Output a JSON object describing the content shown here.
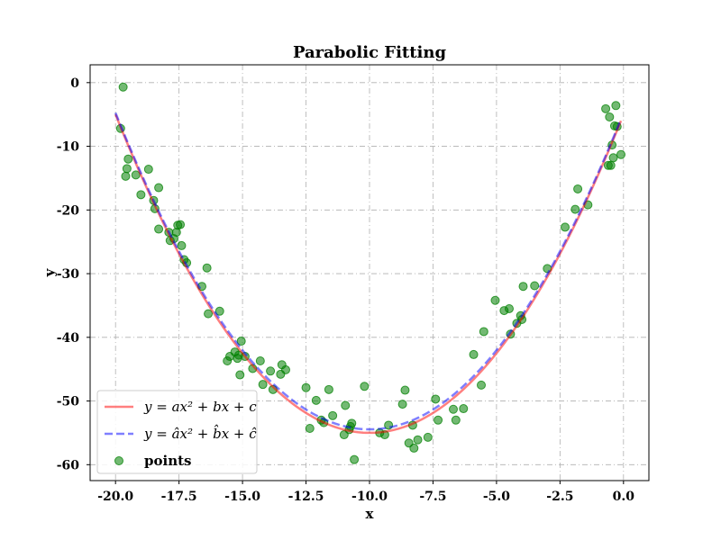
{
  "chart_data": {
    "type": "scatter",
    "title": "Parabolic Fitting",
    "xlabel": "x",
    "ylabel": "y",
    "xlim": [
      -21.0,
      1.0
    ],
    "ylim": [
      -62.5,
      2.8
    ],
    "xticks": [
      -20.0,
      -17.5,
      -15.0,
      -12.5,
      -10.0,
      -7.5,
      -5.0,
      -2.5,
      0.0
    ],
    "xtick_labels": [
      "-20.0",
      "-17.5",
      "-15.0",
      "-12.5",
      "-10.0",
      "-7.5",
      "-5.0",
      "-2.5",
      "0.0"
    ],
    "yticks": [
      0,
      -10,
      -20,
      -30,
      -40,
      -50,
      -60
    ],
    "ytick_labels": [
      "0",
      "-10",
      "-20",
      "-30",
      "-40",
      "-50",
      "-60"
    ],
    "grid": true,
    "legend_position": "bottom-left",
    "series": [
      {
        "name": "y = ax² + bx + c",
        "kind": "line",
        "color": "#ff0000",
        "style": "solid",
        "coefficients": {
          "a": 0.5,
          "b": 10.0,
          "c": -5.0
        },
        "x_range": [
          -20.0,
          -0.1
        ]
      },
      {
        "name": "y = âx² + b̂x + ĉ",
        "kind": "line",
        "color": "#0000ff",
        "style": "dashed",
        "coefficients": {
          "a": 0.497,
          "b": 9.94,
          "c": -4.75
        },
        "x_range": [
          -20.0,
          -0.1
        ]
      },
      {
        "name": "points",
        "kind": "scatter",
        "color": "#008000",
        "points": [
          [
            -19.8,
            -7.2
          ],
          [
            -19.7,
            -0.7
          ],
          [
            -19.6,
            -14.7
          ],
          [
            -19.55,
            -13.5
          ],
          [
            -19.5,
            -12.0
          ],
          [
            -19.2,
            -14.5
          ],
          [
            -19.0,
            -17.6
          ],
          [
            -18.7,
            -13.6
          ],
          [
            -18.5,
            -18.5
          ],
          [
            -18.45,
            -19.8
          ],
          [
            -18.3,
            -23.0
          ],
          [
            -18.3,
            -16.5
          ],
          [
            -17.9,
            -23.5
          ],
          [
            -17.85,
            -24.8
          ],
          [
            -17.7,
            -24.5
          ],
          [
            -17.6,
            -23.5
          ],
          [
            -17.55,
            -22.4
          ],
          [
            -17.45,
            -22.3
          ],
          [
            -17.4,
            -25.6
          ],
          [
            -17.3,
            -27.8
          ],
          [
            -17.2,
            -28.3
          ],
          [
            -16.6,
            -32.0
          ],
          [
            -16.4,
            -29.1
          ],
          [
            -16.35,
            -36.3
          ],
          [
            -15.9,
            -35.9
          ],
          [
            -15.6,
            -43.7
          ],
          [
            -15.5,
            -43.0
          ],
          [
            -15.3,
            -42.3
          ],
          [
            -15.2,
            -43.3
          ],
          [
            -15.15,
            -42.8
          ],
          [
            -15.1,
            -45.9
          ],
          [
            -15.05,
            -40.6
          ],
          [
            -14.9,
            -43.0
          ],
          [
            -14.6,
            -44.9
          ],
          [
            -14.3,
            -43.7
          ],
          [
            -14.2,
            -47.4
          ],
          [
            -13.9,
            -45.3
          ],
          [
            -13.8,
            -48.2
          ],
          [
            -13.5,
            -45.8
          ],
          [
            -13.45,
            -44.3
          ],
          [
            -13.3,
            -45.1
          ],
          [
            -12.5,
            -47.9
          ],
          [
            -12.35,
            -54.3
          ],
          [
            -12.1,
            -49.9
          ],
          [
            -11.9,
            -53.0
          ],
          [
            -11.8,
            -53.4
          ],
          [
            -11.6,
            -48.2
          ],
          [
            -11.45,
            -52.3
          ],
          [
            -11.0,
            -55.3
          ],
          [
            -10.95,
            -50.7
          ],
          [
            -10.8,
            -54.5
          ],
          [
            -10.75,
            -54.0
          ],
          [
            -10.7,
            -53.5
          ],
          [
            -10.6,
            -59.2
          ],
          [
            -10.2,
            -47.7
          ],
          [
            -9.6,
            -55.0
          ],
          [
            -9.4,
            -55.3
          ],
          [
            -9.25,
            -53.8
          ],
          [
            -8.7,
            -50.5
          ],
          [
            -8.6,
            -48.3
          ],
          [
            -8.45,
            -56.6
          ],
          [
            -8.3,
            -53.8
          ],
          [
            -8.25,
            -57.4
          ],
          [
            -8.1,
            -56.1
          ],
          [
            -7.7,
            -55.7
          ],
          [
            -7.4,
            -49.7
          ],
          [
            -7.3,
            -53.0
          ],
          [
            -6.7,
            -51.3
          ],
          [
            -6.6,
            -53.0
          ],
          [
            -6.3,
            -51.2
          ],
          [
            -5.9,
            -42.7
          ],
          [
            -5.6,
            -47.5
          ],
          [
            -5.5,
            -39.1
          ],
          [
            -5.05,
            -34.2
          ],
          [
            -4.7,
            -35.8
          ],
          [
            -4.5,
            -35.5
          ],
          [
            -4.45,
            -39.5
          ],
          [
            -4.2,
            -37.8
          ],
          [
            -4.05,
            -36.6
          ],
          [
            -4.0,
            -37.2
          ],
          [
            -3.95,
            -32.0
          ],
          [
            -3.5,
            -31.9
          ],
          [
            -3.0,
            -29.2
          ],
          [
            -2.3,
            -22.7
          ],
          [
            -1.9,
            -19.9
          ],
          [
            -1.8,
            -16.7
          ],
          [
            -1.4,
            -19.2
          ],
          [
            -0.7,
            -4.1
          ],
          [
            -0.6,
            -13.0
          ],
          [
            -0.55,
            -5.4
          ],
          [
            -0.5,
            -13.0
          ],
          [
            -0.45,
            -9.8
          ],
          [
            -0.4,
            -11.8
          ],
          [
            -0.35,
            -6.8
          ],
          [
            -0.3,
            -3.6
          ],
          [
            -0.25,
            -6.9
          ],
          [
            -0.1,
            -11.3
          ]
        ]
      }
    ]
  }
}
